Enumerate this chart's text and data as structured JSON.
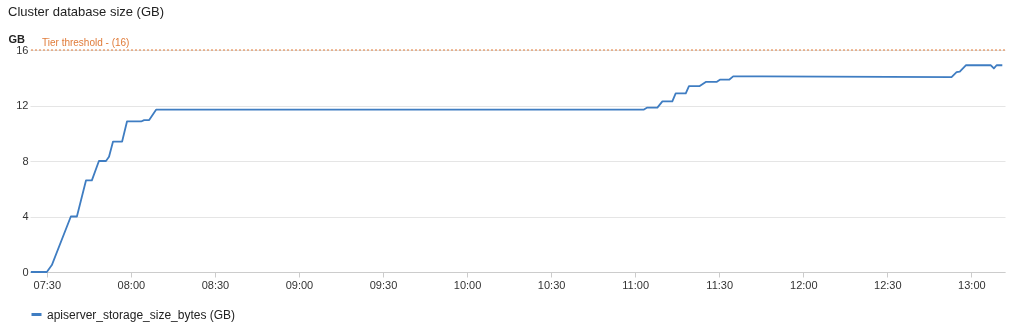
{
  "chart_data": {
    "type": "line",
    "title": "Cluster database size (GB)",
    "ylabel": "GB",
    "x": [
      7.405,
      7.5,
      7.53,
      7.643,
      7.679,
      7.733,
      7.768,
      7.81,
      7.852,
      7.87,
      7.894,
      7.948,
      7.977,
      8.061,
      8.079,
      8.109,
      8.15,
      11.05,
      11.072,
      11.132,
      11.162,
      11.221,
      11.241,
      11.301,
      11.32,
      11.384,
      11.42,
      11.484,
      11.504,
      11.559,
      11.583,
      12.882,
      12.912,
      12.931,
      12.967,
      13.116,
      13.134,
      13.15,
      13.184
    ],
    "series": [
      {
        "name": "apiserver_storage_size_bytes (GB)",
        "color": "#3f7dc2",
        "values": [
          0,
          0,
          0.5,
          4.0,
          4.0,
          6.6,
          6.6,
          8.0,
          8.0,
          8.3,
          9.4,
          9.4,
          10.85,
          10.85,
          10.95,
          10.95,
          11.7,
          11.7,
          11.85,
          11.85,
          12.3,
          12.3,
          12.87,
          12.87,
          13.4,
          13.4,
          13.7,
          13.7,
          13.86,
          13.86,
          14.1,
          14.05,
          14.4,
          14.45,
          14.9,
          14.9,
          14.67,
          14.9,
          14.9
        ]
      }
    ],
    "xlim": [
      7.4,
      13.2
    ],
    "xticks": [
      {
        "value": 7.5,
        "label": "07:30"
      },
      {
        "value": 8.0,
        "label": "08:00"
      },
      {
        "value": 8.5,
        "label": "08:30"
      },
      {
        "value": 9.0,
        "label": "09:00"
      },
      {
        "value": 9.5,
        "label": "09:30"
      },
      {
        "value": 10.0,
        "label": "10:00"
      },
      {
        "value": 10.5,
        "label": "10:30"
      },
      {
        "value": 11.0,
        "label": "11:00"
      },
      {
        "value": 11.5,
        "label": "11:30"
      },
      {
        "value": 12.0,
        "label": "12:00"
      },
      {
        "value": 12.5,
        "label": "12:30"
      },
      {
        "value": 13.0,
        "label": "13:00"
      }
    ],
    "ylim": [
      0,
      16
    ],
    "yticks": [
      0,
      4,
      8,
      12,
      16
    ],
    "ref_lines": [
      {
        "axis": "y",
        "value": 16,
        "label": "Tier threshold - (16)",
        "color": "#e07b39",
        "line_style": "dotted"
      }
    ],
    "grid": "y",
    "legend": "bottom",
    "marker": "none",
    "line_style": "solid"
  }
}
